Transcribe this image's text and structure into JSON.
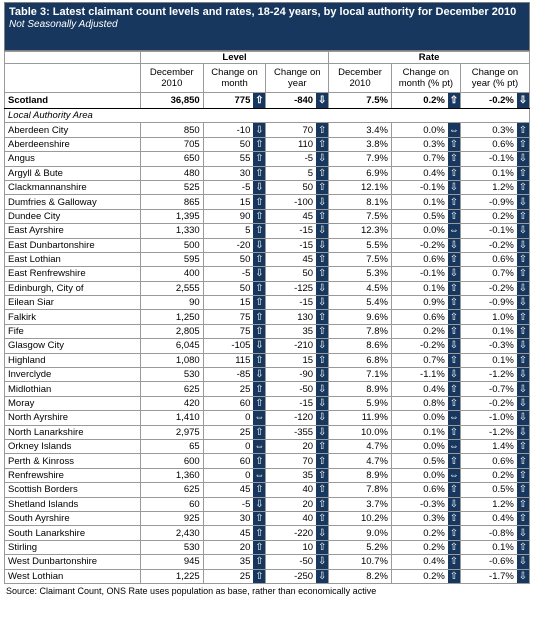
{
  "header": {
    "title": "Table 3: Latest claimant count levels and rates, 18-24 years, by local authority for December 2010",
    "subtitle": "Not Seasonally Adjusted"
  },
  "table": {
    "groups": [
      "Level",
      "Rate"
    ],
    "columns": [
      "December 2010",
      "Change on month",
      "Change on year",
      "December 2010",
      "Change on month (% pt)",
      "Change on year (% pt)"
    ],
    "total": [
      "Scotland",
      "36,850",
      "775",
      "-840",
      "7.5%",
      "0.2%",
      "-0.2%"
    ],
    "section_label": "Local Authority Area",
    "rows": [
      [
        "Aberdeen City",
        "850",
        "-10",
        "70",
        "3.4%",
        "0.0%",
        "0.3%"
      ],
      [
        "Aberdeenshire",
        "705",
        "50",
        "110",
        "3.8%",
        "0.3%",
        "0.6%"
      ],
      [
        "Angus",
        "650",
        "55",
        "-5",
        "7.9%",
        "0.7%",
        "-0.1%"
      ],
      [
        "Argyll & Bute",
        "480",
        "30",
        "5",
        "6.9%",
        "0.4%",
        "0.1%"
      ],
      [
        "Clackmannanshire",
        "525",
        "-5",
        "50",
        "12.1%",
        "-0.1%",
        "1.2%"
      ],
      [
        "Dumfries & Galloway",
        "865",
        "15",
        "-100",
        "8.1%",
        "0.1%",
        "-0.9%"
      ],
      [
        "Dundee City",
        "1,395",
        "90",
        "45",
        "7.5%",
        "0.5%",
        "0.2%"
      ],
      [
        "East Ayrshire",
        "1,330",
        "5",
        "-15",
        "12.3%",
        "0.0%",
        "-0.1%"
      ],
      [
        "East Dunbartonshire",
        "500",
        "-20",
        "-15",
        "5.5%",
        "-0.2%",
        "-0.2%"
      ],
      [
        "East Lothian",
        "595",
        "50",
        "45",
        "7.5%",
        "0.6%",
        "0.6%"
      ],
      [
        "East Renfrewshire",
        "400",
        "-5",
        "50",
        "5.3%",
        "-0.1%",
        "0.7%"
      ],
      [
        "Edinburgh, City of",
        "2,555",
        "50",
        "-125",
        "4.5%",
        "0.1%",
        "-0.2%"
      ],
      [
        "Eilean Siar",
        "90",
        "15",
        "-15",
        "5.4%",
        "0.9%",
        "-0.9%"
      ],
      [
        "Falkirk",
        "1,250",
        "75",
        "130",
        "9.6%",
        "0.6%",
        "1.0%"
      ],
      [
        "Fife",
        "2,805",
        "75",
        "35",
        "7.8%",
        "0.2%",
        "0.1%"
      ],
      [
        "Glasgow City",
        "6,045",
        "-105",
        "-210",
        "8.6%",
        "-0.2%",
        "-0.3%"
      ],
      [
        "Highland",
        "1,080",
        "115",
        "15",
        "6.8%",
        "0.7%",
        "0.1%"
      ],
      [
        "Inverclyde",
        "530",
        "-85",
        "-90",
        "7.1%",
        "-1.1%",
        "-1.2%"
      ],
      [
        "Midlothian",
        "625",
        "25",
        "-50",
        "8.9%",
        "0.4%",
        "-0.7%"
      ],
      [
        "Moray",
        "420",
        "60",
        "-15",
        "5.9%",
        "0.8%",
        "-0.2%"
      ],
      [
        "North Ayrshire",
        "1,410",
        "0",
        "-120",
        "11.9%",
        "0.0%",
        "-1.0%"
      ],
      [
        "North Lanarkshire",
        "2,975",
        "25",
        "-355",
        "10.0%",
        "0.1%",
        "-1.2%"
      ],
      [
        "Orkney Islands",
        "65",
        "0",
        "20",
        "4.7%",
        "0.0%",
        "1.4%"
      ],
      [
        "Perth & Kinross",
        "600",
        "60",
        "70",
        "4.7%",
        "0.5%",
        "0.6%"
      ],
      [
        "Renfrewshire",
        "1,360",
        "0",
        "35",
        "8.9%",
        "0.0%",
        "0.2%"
      ],
      [
        "Scottish Borders",
        "625",
        "45",
        "40",
        "7.8%",
        "0.6%",
        "0.5%"
      ],
      [
        "Shetland Islands",
        "60",
        "-5",
        "20",
        "3.7%",
        "-0.3%",
        "1.2%"
      ],
      [
        "South Ayrshire",
        "925",
        "30",
        "40",
        "10.2%",
        "0.3%",
        "0.4%"
      ],
      [
        "South Lanarkshire",
        "2,430",
        "45",
        "-220",
        "9.0%",
        "0.2%",
        "-0.8%"
      ],
      [
        "Stirling",
        "530",
        "20",
        "10",
        "5.2%",
        "0.2%",
        "0.1%"
      ],
      [
        "West Dunbartonshire",
        "945",
        "35",
        "-50",
        "10.7%",
        "0.4%",
        "-0.6%"
      ],
      [
        "West Lothian",
        "1,225",
        "25",
        "-250",
        "8.2%",
        "0.2%",
        "-1.7%"
      ]
    ]
  },
  "footer": {
    "source": "Source: Claimant Count, ONS  Rate uses population as base, rather than economically active"
  }
}
